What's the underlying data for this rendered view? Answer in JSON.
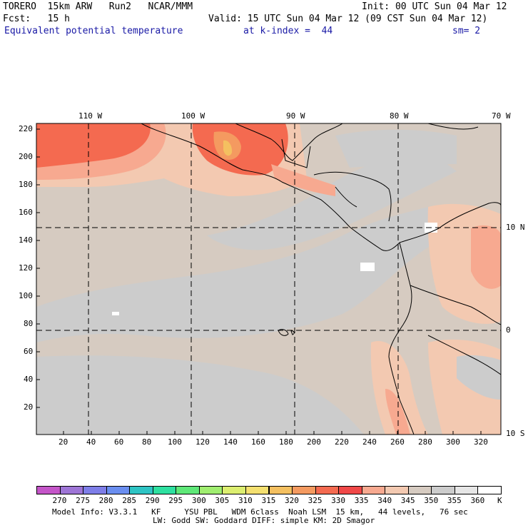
{
  "header": {
    "line1_left": "TORERO  15km ARW   Run2   NCAR/MMM",
    "line1_right": "Init: 00 UTC Sun 04 Mar 12",
    "line2_left": "Fcst:   15 h",
    "line2_right": "Valid: 15 UTC Sun 04 Mar 12 (09 CST Sun 04 Mar 12)",
    "field_name": "Equivalent potential temperature",
    "k_index": "at k-index =  44",
    "smooth": "sm= 2"
  },
  "map": {
    "lon_labels": [
      "110 W",
      "100 W",
      "90 W",
      "80 W",
      "70 W"
    ],
    "lat_labels": [
      "10 N",
      "0",
      "10 S"
    ],
    "y_ticks": [
      "220",
      "200",
      "180",
      "160",
      "140",
      "120",
      "100",
      "80",
      "60",
      "40",
      "20"
    ],
    "x_ticks": [
      "20",
      "40",
      "60",
      "80",
      "100",
      "120",
      "140",
      "160",
      "180",
      "200",
      "220",
      "240",
      "260",
      "280",
      "300",
      "320"
    ]
  },
  "colorbar": {
    "unit": "K",
    "levels": [
      "270",
      "275",
      "280",
      "285",
      "290",
      "295",
      "300",
      "305",
      "310",
      "315",
      "320",
      "325",
      "330",
      "335",
      "340",
      "345",
      "350",
      "355",
      "360"
    ],
    "colors": [
      "#c455c8",
      "#9e75d6",
      "#7e7ee8",
      "#6a8ef0",
      "#2ec4c4",
      "#2ee0a0",
      "#5ee878",
      "#a0ee70",
      "#dcee70",
      "#f4e070",
      "#f4c060",
      "#f49a60",
      "#f46a50",
      "#f04848",
      "#f7a990",
      "#f3c9b1",
      "#d6cbc1",
      "#cccccc",
      "#e6e6e6",
      "#ffffff"
    ]
  },
  "footer": {
    "line1": "Model Info: V3.3.1   KF     YSU PBL   WDM 6class  Noah LSM  15 km,   44 levels,   76 sec",
    "line2": "LW: Godd SW: Goddard DIFF: simple KM: 2D Smagor"
  }
}
